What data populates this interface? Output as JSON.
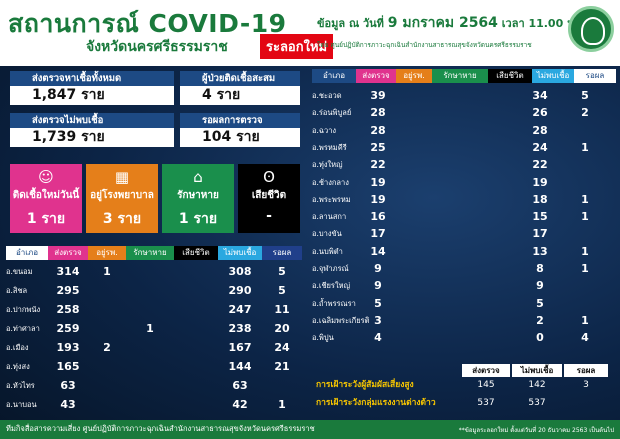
{
  "header": {
    "title": "สถานการณ์ COVID-19",
    "subtitle": "จังหวัดนครศรีธรรมราช",
    "badge": "ระลอกใหม่",
    "date_prefix": "ข้อมูล ณ วันที่",
    "date_value": "9 มกราคม 2564",
    "time_text": "เวลา 11.00 น.",
    "source": "โดย ศูนย์ปฏิบัติการภาวะฉุกเฉินสำนักงานสาธารณสุขจังหวัดนครศรีธรรมราช",
    "logo_icon": "ministry-of-public-health-seal"
  },
  "summary": {
    "tested_label": "ส่งตรวจหาเชื้อทั้งหมด",
    "tested_value": "1,847 ราย",
    "cumulative_label": "ผู้ป่วยติดเชื้อสะสม",
    "cumulative_value": "4 ราย",
    "negative_label": "ส่งตรวจไม่พบเชื้อ",
    "negative_value": "1,739 ราย",
    "pending_label": "รอผลการตรวจ",
    "pending_value": "104 ราย"
  },
  "tiles": [
    {
      "label": "ติดเชื้อใหม่วันนี้",
      "value": "1 ราย",
      "icon": "person-mask-icon",
      "color": "#e0338e"
    },
    {
      "label": "อยู่โรงพยาบาล",
      "value": "3 ราย",
      "icon": "hospital-icon",
      "color": "#e57f1a"
    },
    {
      "label": "รักษาหาย",
      "value": "1 ราย",
      "icon": "home-icon",
      "color": "#1a8f4c"
    },
    {
      "label": "เสียชีวิต",
      "value": "-",
      "icon": "mourning-ribbon-icon",
      "color": "#000000"
    }
  ],
  "table_headers": [
    "อำเภอ",
    "ส่งตรวจ",
    "อยู่รพ.",
    "รักษาหาย",
    "เสียชีวิต",
    "ไม่พบเชื้อ",
    "รอผล"
  ],
  "left_table": [
    {
      "district": "อ.ขนอม",
      "tested": "314",
      "hospital": "1",
      "recovered": "",
      "deaths": "",
      "negative": "308",
      "pending": "5"
    },
    {
      "district": "อ.สิชล",
      "tested": "295",
      "hospital": "",
      "recovered": "",
      "deaths": "",
      "negative": "290",
      "pending": "5"
    },
    {
      "district": "อ.ปากพนัง",
      "tested": "258",
      "hospital": "",
      "recovered": "",
      "deaths": "",
      "negative": "247",
      "pending": "11"
    },
    {
      "district": "อ.ท่าศาลา",
      "tested": "259",
      "hospital": "",
      "recovered": "1",
      "deaths": "",
      "negative": "238",
      "pending": "20"
    },
    {
      "district": "อ.เมือง",
      "tested": "193",
      "hospital": "2",
      "recovered": "",
      "deaths": "",
      "negative": "167",
      "pending": "24"
    },
    {
      "district": "อ.ทุ่งสง",
      "tested": "165",
      "hospital": "",
      "recovered": "",
      "deaths": "",
      "negative": "144",
      "pending": "21"
    },
    {
      "district": "อ.หัวไทร",
      "tested": "63",
      "hospital": "",
      "recovered": "",
      "deaths": "",
      "negative": "63",
      "pending": ""
    },
    {
      "district": "อ.นาบอน",
      "tested": "43",
      "hospital": "",
      "recovered": "",
      "deaths": "",
      "negative": "42",
      "pending": "1"
    }
  ],
  "right_table": [
    {
      "district": "อ.ชะอวด",
      "tested": "39",
      "negative": "34",
      "pending": "5"
    },
    {
      "district": "อ.ร่อนพิบูลย์",
      "tested": "28",
      "negative": "26",
      "pending": "2"
    },
    {
      "district": "อ.ฉวาง",
      "tested": "28",
      "negative": "28",
      "pending": ""
    },
    {
      "district": "อ.พรหมคีรี",
      "tested": "25",
      "negative": "24",
      "pending": "1"
    },
    {
      "district": "อ.ทุ่งใหญ่",
      "tested": "22",
      "negative": "22",
      "pending": ""
    },
    {
      "district": "อ.ช้างกลาง",
      "tested": "19",
      "negative": "19",
      "pending": ""
    },
    {
      "district": "อ.พระพรหม",
      "tested": "19",
      "negative": "18",
      "pending": "1"
    },
    {
      "district": "อ.ลานสกา",
      "tested": "16",
      "negative": "15",
      "pending": "1"
    },
    {
      "district": "อ.บางขัน",
      "tested": "17",
      "negative": "17",
      "pending": ""
    },
    {
      "district": "อ.นบพิตำ",
      "tested": "14",
      "negative": "13",
      "pending": "1"
    },
    {
      "district": "อ.จุฬาภรณ์",
      "tested": "9",
      "negative": "8",
      "pending": "1"
    },
    {
      "district": "อ.เชียรใหญ่",
      "tested": "9",
      "negative": "9",
      "pending": ""
    },
    {
      "district": "อ.ถ้ำพรรณรา",
      "tested": "5",
      "negative": "5",
      "pending": ""
    },
    {
      "district": "อ.เฉลิมพระเกียรติ",
      "tested": "3",
      "negative": "2",
      "pending": "1"
    },
    {
      "district": "อ.พิปูน",
      "tested": "4",
      "negative": "0",
      "pending": "4"
    }
  ],
  "bottom": {
    "headers": [
      "ส่งตรวจ",
      "ไม่พบเชื้อ",
      "รอผล"
    ],
    "rows": [
      {
        "label": "การเฝ้าระวังผู้สัมผัสเสี่ยงสูง",
        "tested": "145",
        "negative": "142",
        "pending": "3"
      },
      {
        "label": "การเฝ้าระวังกลุ่มแรงงานต่างด้าว",
        "tested": "537",
        "negative": "537",
        "pending": ""
      }
    ]
  },
  "footer": {
    "left": "ทีมกิจสื่อสารความเสี่ยง ศูนย์ปฏิบัติการภาวะฉุกเฉินสำนักงานสาธารณสุขจังหวัดนครศรีธรรมราช",
    "right": "**ข้อมูลระลอกใหม่ ตั้งแต่วันที่ 20 ธันวาคม 2563 เป็นต้นไป"
  }
}
